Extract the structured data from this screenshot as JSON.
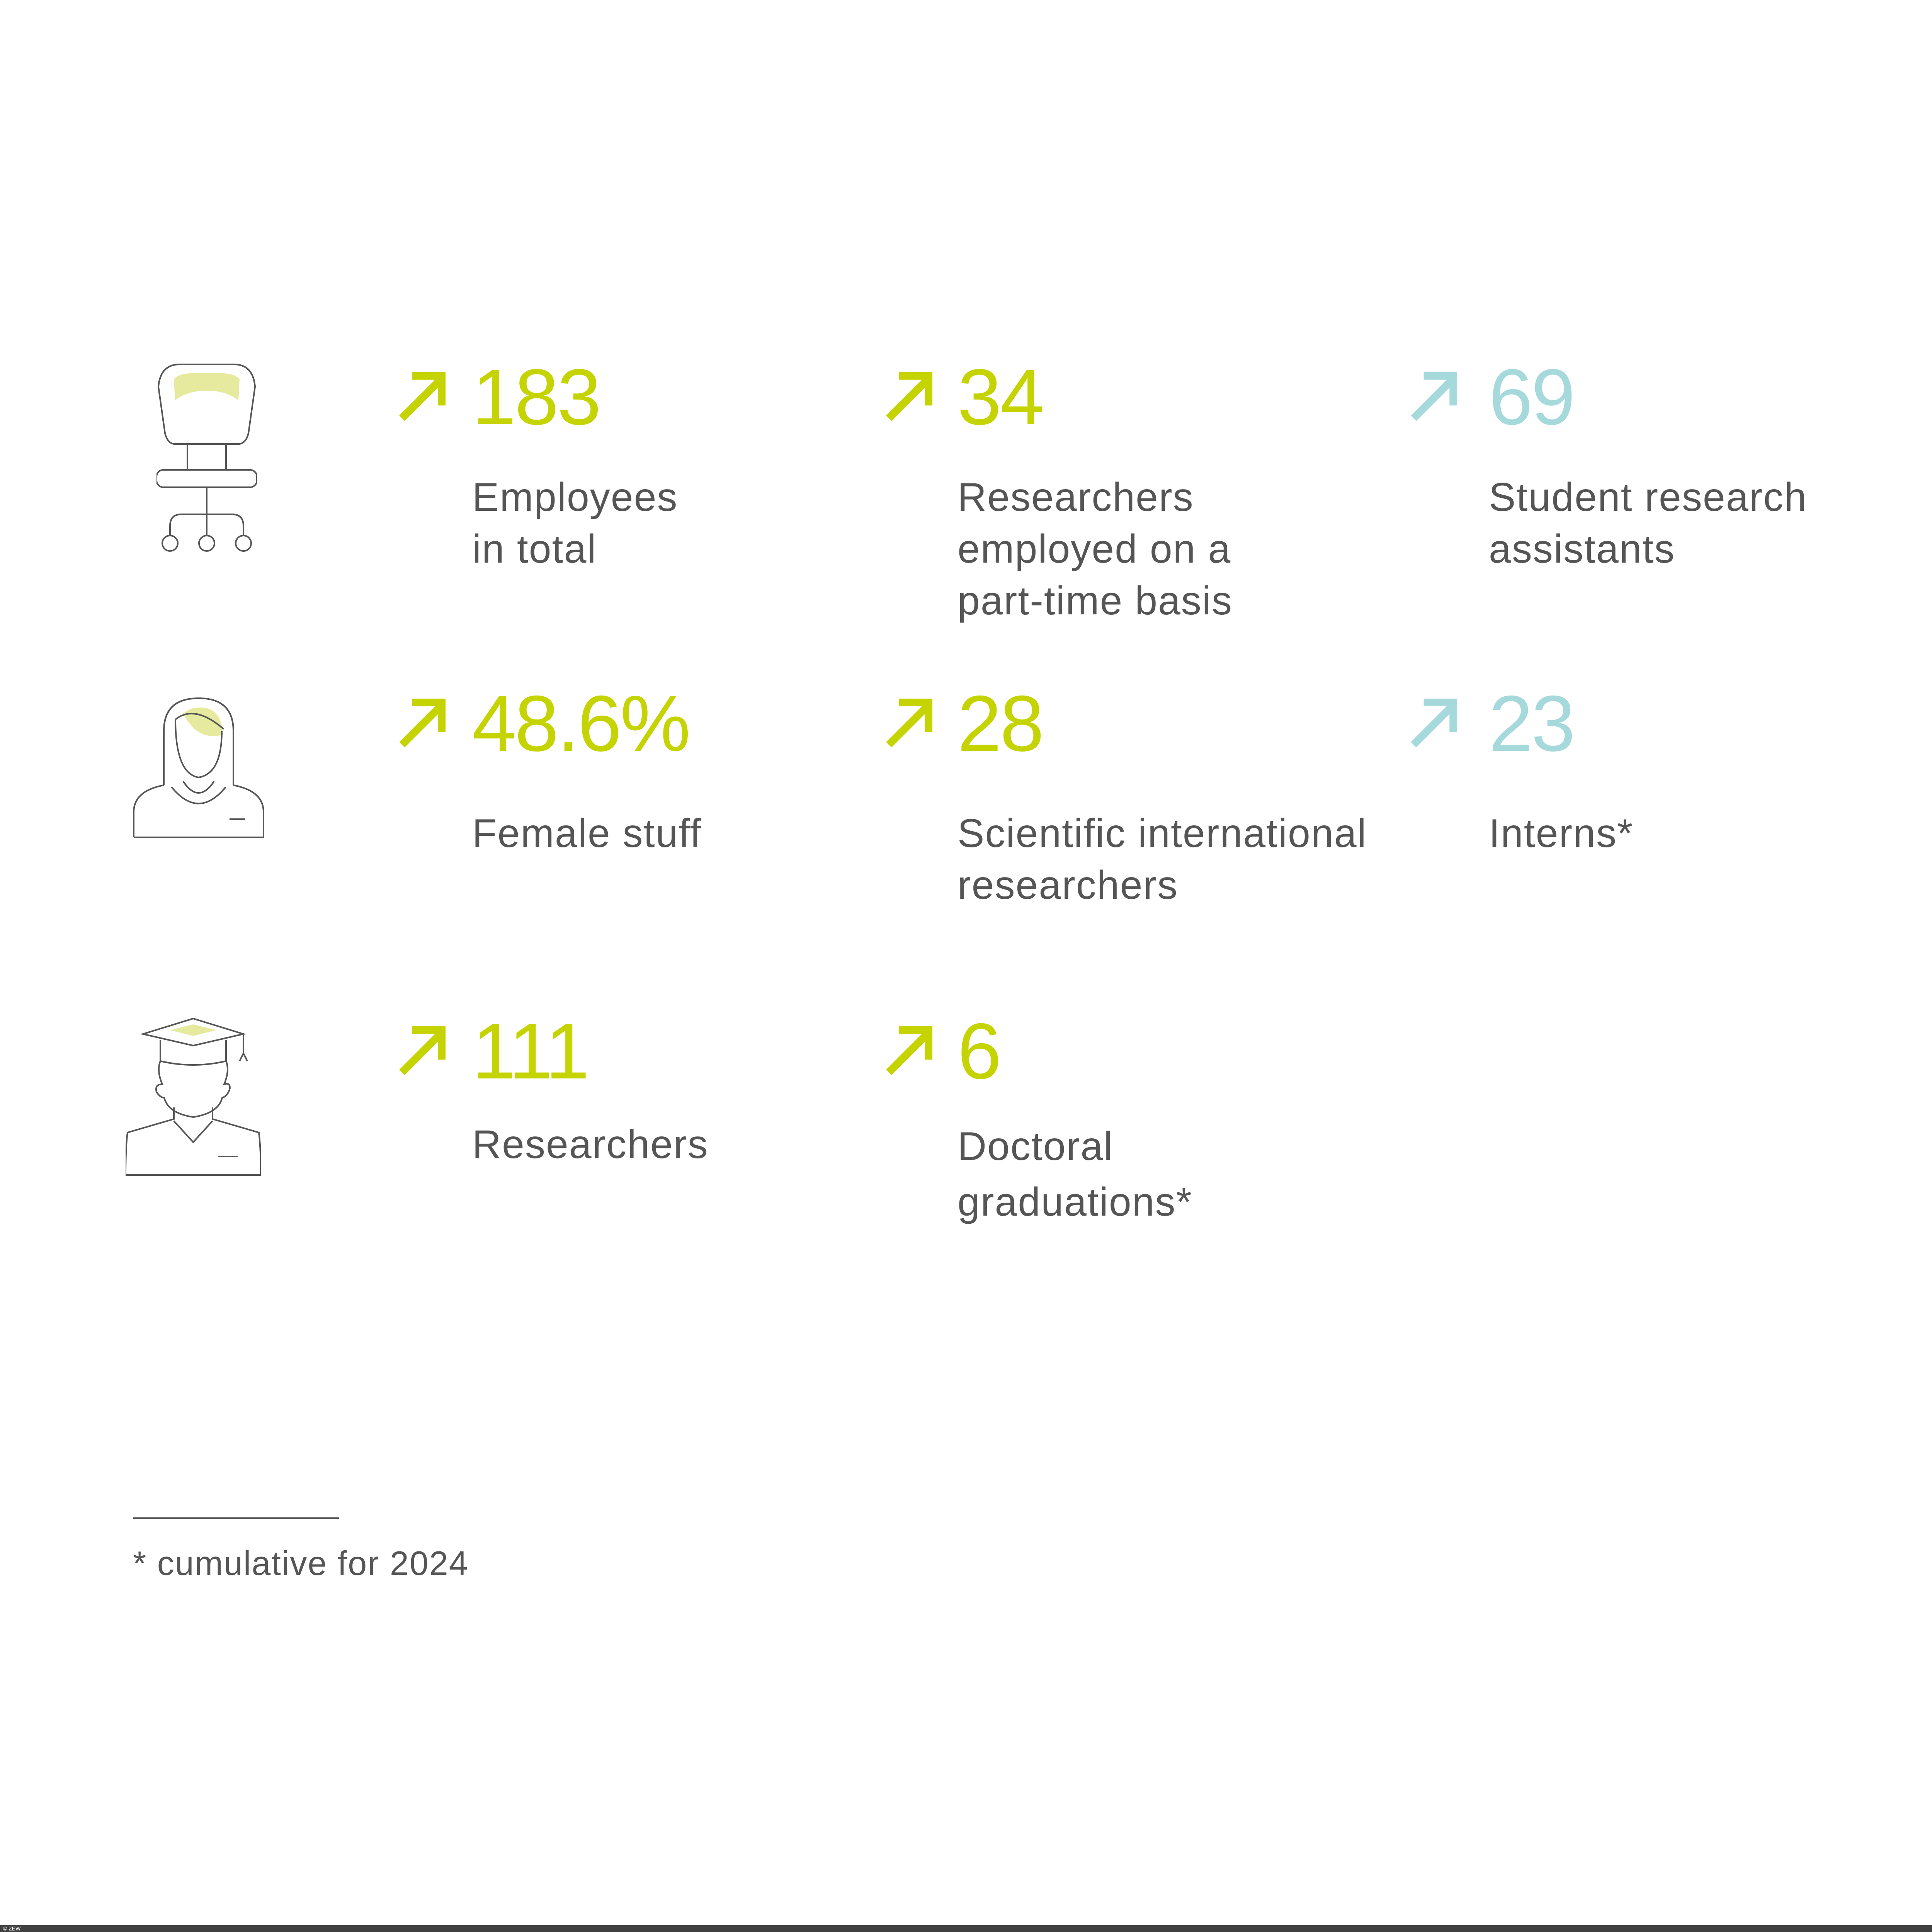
{
  "colors": {
    "accent_green": "#c5d300",
    "accent_teal": "#a6d9dc",
    "text": "#555555",
    "footer_bar": "#404040",
    "icon_fill": "#e5ea9e"
  },
  "rows": [
    {
      "icon": "office-chair-icon",
      "stats": [
        {
          "value": "183",
          "label_lines": [
            "Employees",
            "in total"
          ],
          "trend": "up-arrow-icon",
          "color": "green"
        },
        {
          "value": "34",
          "label_lines": [
            "Researchers",
            "employed on a",
            "part-time basis"
          ],
          "trend": "up-arrow-icon",
          "color": "green"
        },
        {
          "value": "69",
          "label_lines": [
            "Student research",
            "assistants"
          ],
          "trend": "up-arrow-icon",
          "color": "teal"
        }
      ]
    },
    {
      "icon": "female-person-icon",
      "stats": [
        {
          "value": "48.6%",
          "label_lines": [
            "Female stuff"
          ],
          "trend": "up-arrow-icon",
          "color": "green"
        },
        {
          "value": "28",
          "label_lines": [
            "Scientific international",
            "researchers"
          ],
          "trend": "up-arrow-icon",
          "color": "green"
        },
        {
          "value": "23",
          "label_lines": [
            "Interns*"
          ],
          "trend": "up-arrow-icon",
          "color": "teal"
        }
      ]
    },
    {
      "icon": "graduate-icon",
      "stats": [
        {
          "value": "111",
          "label_lines": [
            "Researchers"
          ],
          "trend": "up-arrow-icon",
          "color": "green"
        },
        {
          "value": "6",
          "label_lines": [
            "Doctoral",
            "graduations*"
          ],
          "trend": "up-arrow-icon",
          "color": "green"
        }
      ]
    }
  ],
  "footnote": "*  cumulative for 2024",
  "copyright": "© ZEW"
}
